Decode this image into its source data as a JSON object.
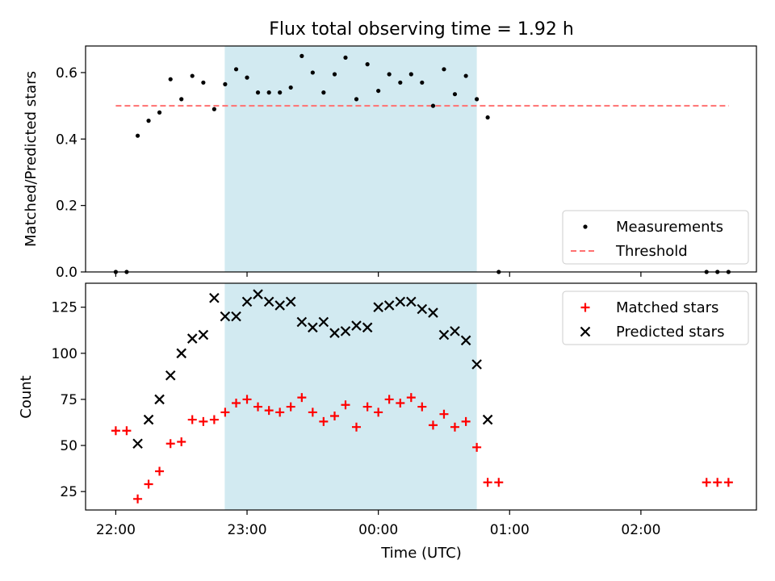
{
  "title": "Flux total observing time = 1.92 h",
  "colors": {
    "shade": "#add8e6",
    "threshold": "#ff7070",
    "measurement": "#000000",
    "matched": "#ff0000",
    "predicted": "#000000"
  },
  "chart_data": [
    {
      "type": "scatter",
      "ylabel": "Matched/Predicted stars",
      "ylim": [
        0,
        0.68
      ],
      "yticks": [
        0.0,
        0.2,
        0.4,
        0.6
      ],
      "ytick_labels": [
        "0.0",
        "0.2",
        "0.4",
        "0.6"
      ],
      "xlim_hours": [
        21.77,
        26.88
      ],
      "shaded_span_hours": [
        22.83,
        24.75
      ],
      "threshold": {
        "value": 0.5,
        "x_range_hours": [
          22.0,
          26.67
        ]
      },
      "legend": {
        "placement": "lower right",
        "entries": [
          "Measurements",
          "Threshold"
        ]
      },
      "series": [
        {
          "name": "Measurements",
          "marker": "dot",
          "points": [
            [
              22.0,
              0.0
            ],
            [
              22.083,
              0.0
            ],
            [
              22.167,
              0.41
            ],
            [
              22.25,
              0.455
            ],
            [
              22.333,
              0.48
            ],
            [
              22.417,
              0.58
            ],
            [
              22.5,
              0.52
            ],
            [
              22.583,
              0.59
            ],
            [
              22.667,
              0.57
            ],
            [
              22.75,
              0.49
            ],
            [
              22.833,
              0.565
            ],
            [
              22.917,
              0.61
            ],
            [
              23.0,
              0.585
            ],
            [
              23.083,
              0.54
            ],
            [
              23.167,
              0.54
            ],
            [
              23.25,
              0.54
            ],
            [
              23.333,
              0.555
            ],
            [
              23.417,
              0.65
            ],
            [
              23.5,
              0.6
            ],
            [
              23.583,
              0.54
            ],
            [
              23.667,
              0.595
            ],
            [
              23.75,
              0.645
            ],
            [
              23.833,
              0.52
            ],
            [
              23.917,
              0.625
            ],
            [
              24.0,
              0.545
            ],
            [
              24.083,
              0.595
            ],
            [
              24.167,
              0.57
            ],
            [
              24.25,
              0.595
            ],
            [
              24.333,
              0.57
            ],
            [
              24.417,
              0.5
            ],
            [
              24.5,
              0.61
            ],
            [
              24.583,
              0.535
            ],
            [
              24.667,
              0.59
            ],
            [
              24.75,
              0.52
            ],
            [
              24.833,
              0.465
            ],
            [
              24.917,
              0.0
            ],
            [
              26.5,
              0.0
            ],
            [
              26.583,
              0.0
            ],
            [
              26.667,
              0.0
            ]
          ]
        },
        {
          "name": "Threshold",
          "style": "dashed",
          "value": 0.5
        }
      ]
    },
    {
      "type": "scatter",
      "xlabel": "Time (UTC)",
      "ylabel": "Count",
      "ylim": [
        15,
        138
      ],
      "yticks": [
        25,
        50,
        75,
        100,
        125
      ],
      "ytick_labels": [
        "25",
        "50",
        "75",
        "100",
        "125"
      ],
      "xlim_hours": [
        21.77,
        26.88
      ],
      "xticks_hours": [
        22,
        23,
        24,
        25,
        26
      ],
      "xtick_labels": [
        "22:00",
        "23:00",
        "00:00",
        "01:00",
        "02:00"
      ],
      "shaded_span_hours": [
        22.83,
        24.75
      ],
      "legend": {
        "placement": "upper right",
        "entries": [
          "Matched stars",
          "Predicted stars"
        ]
      },
      "series": [
        {
          "name": "Matched stars",
          "marker": "plus",
          "points": [
            [
              22.0,
              58
            ],
            [
              22.083,
              58
            ],
            [
              22.167,
              21
            ],
            [
              22.25,
              29
            ],
            [
              22.333,
              36
            ],
            [
              22.417,
              51
            ],
            [
              22.5,
              52
            ],
            [
              22.583,
              64
            ],
            [
              22.667,
              63
            ],
            [
              22.75,
              64
            ],
            [
              22.833,
              68
            ],
            [
              22.917,
              73
            ],
            [
              23.0,
              75
            ],
            [
              23.083,
              71
            ],
            [
              23.167,
              69
            ],
            [
              23.25,
              68
            ],
            [
              23.333,
              71
            ],
            [
              23.417,
              76
            ],
            [
              23.5,
              68
            ],
            [
              23.583,
              63
            ],
            [
              23.667,
              66
            ],
            [
              23.75,
              72
            ],
            [
              23.833,
              60
            ],
            [
              23.917,
              71
            ],
            [
              24.0,
              68
            ],
            [
              24.083,
              75
            ],
            [
              24.167,
              73
            ],
            [
              24.25,
              76
            ],
            [
              24.333,
              71
            ],
            [
              24.417,
              61
            ],
            [
              24.5,
              67
            ],
            [
              24.583,
              60
            ],
            [
              24.667,
              63
            ],
            [
              24.75,
              49
            ],
            [
              24.833,
              30
            ],
            [
              24.917,
              30
            ],
            [
              26.5,
              30
            ],
            [
              26.583,
              30
            ],
            [
              26.667,
              30
            ]
          ]
        },
        {
          "name": "Predicted stars",
          "marker": "x",
          "points": [
            [
              22.167,
              51
            ],
            [
              22.25,
              64
            ],
            [
              22.333,
              75
            ],
            [
              22.417,
              88
            ],
            [
              22.5,
              100
            ],
            [
              22.583,
              108
            ],
            [
              22.667,
              110
            ],
            [
              22.75,
              130
            ],
            [
              22.833,
              120
            ],
            [
              22.917,
              120
            ],
            [
              23.0,
              128
            ],
            [
              23.083,
              132
            ],
            [
              23.167,
              128
            ],
            [
              23.25,
              126
            ],
            [
              23.333,
              128
            ],
            [
              23.417,
              117
            ],
            [
              23.5,
              114
            ],
            [
              23.583,
              117
            ],
            [
              23.667,
              111
            ],
            [
              23.75,
              112
            ],
            [
              23.833,
              115
            ],
            [
              23.917,
              114
            ],
            [
              24.0,
              125
            ],
            [
              24.083,
              126
            ],
            [
              24.167,
              128
            ],
            [
              24.25,
              128
            ],
            [
              24.333,
              124
            ],
            [
              24.417,
              122
            ],
            [
              24.5,
              110
            ],
            [
              24.583,
              112
            ],
            [
              24.667,
              107
            ],
            [
              24.75,
              94
            ],
            [
              24.833,
              64
            ]
          ]
        }
      ]
    }
  ]
}
